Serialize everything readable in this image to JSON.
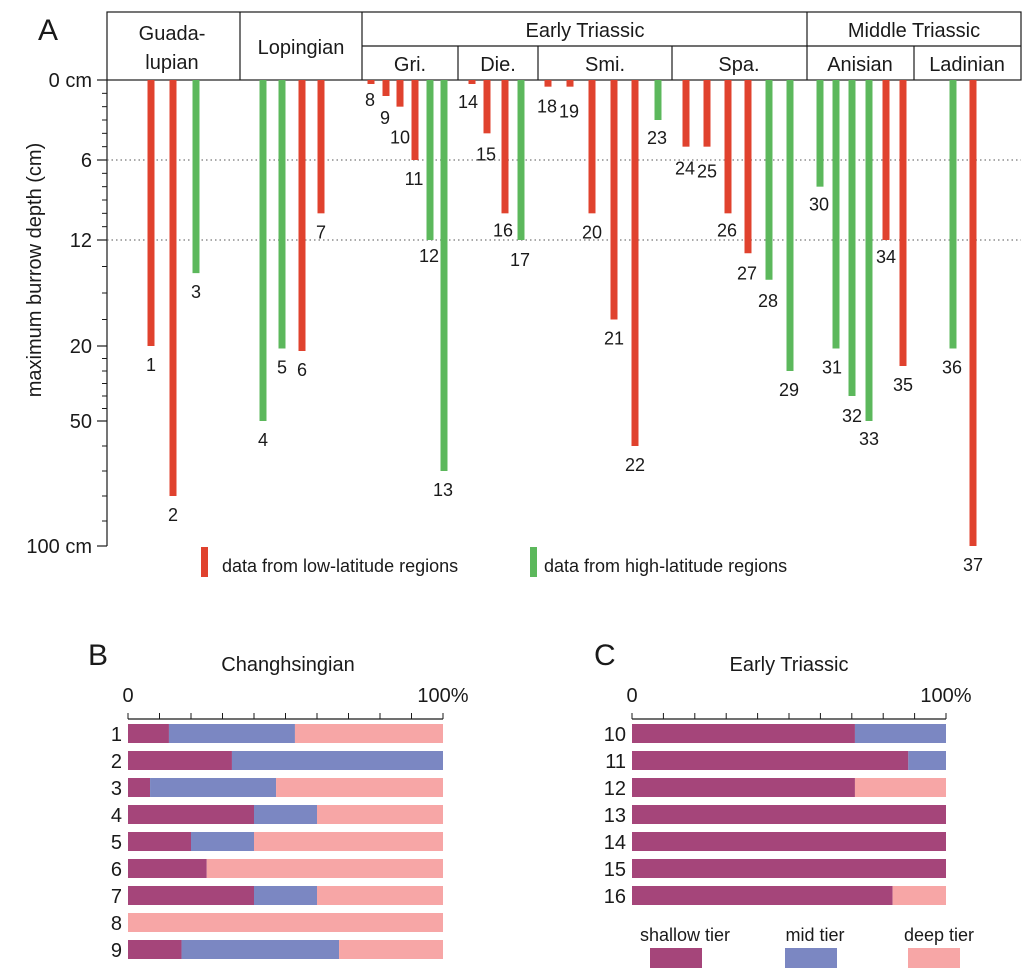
{
  "panels": {
    "a": "A",
    "b": "B",
    "c": "C"
  },
  "colors": {
    "low": "#e0422e",
    "high": "#5cb85c",
    "shallow": "#a5457a",
    "mid": "#7b87c2",
    "deep": "#f7a6a6",
    "dotted": "#555555"
  },
  "header": {
    "guadalupian": [
      "Guada-",
      "lupian"
    ],
    "lopingian": "Lopingian",
    "early_triassic": "Early Triassic",
    "middle_triassic": "Middle Triassic",
    "gri": "Gri.",
    "die": "Die.",
    "smi": "Smi.",
    "spa": "Spa.",
    "anisian": "Anisian",
    "ladinian": "Ladinian"
  },
  "legend": {
    "low": "data from low-latitude regions",
    "high": "data from high-latitude regions",
    "shallow": "shallow tier",
    "mid": "mid tier",
    "deep": "deep tier"
  },
  "chart_data": [
    {
      "type": "bar",
      "ylabel": "maximum burrow depth (cm)",
      "y_ticks": [
        {
          "value": 0,
          "label": "0 cm"
        },
        {
          "value": 6,
          "label": "6"
        },
        {
          "value": 12,
          "label": "12"
        },
        {
          "value": 20,
          "label": "20"
        },
        {
          "value": 50,
          "label": "50"
        },
        {
          "value": 100,
          "label": "100 cm"
        }
      ],
      "y_axis": "non-linear (0–12 linear, then compressed 20, 50, 100)",
      "reference_lines": [
        6,
        12
      ],
      "series_names": {
        "low": "data from low-latitude regions",
        "high": "data from high-latitude regions"
      },
      "bars": [
        {
          "id": "1",
          "region": "low",
          "depth": 20
        },
        {
          "id": "2",
          "region": "low",
          "depth": 80
        },
        {
          "id": "3",
          "region": "high",
          "depth": 14.5
        },
        {
          "id": "4",
          "region": "high",
          "depth": 50
        },
        {
          "id": "5",
          "region": "high",
          "depth": 21
        },
        {
          "id": "6",
          "region": "low",
          "depth": 22
        },
        {
          "id": "7",
          "region": "low",
          "depth": 10
        },
        {
          "id": "8",
          "region": "low",
          "depth": 0.3
        },
        {
          "id": "9",
          "region": "low",
          "depth": 1.2
        },
        {
          "id": "10",
          "region": "low",
          "depth": 2
        },
        {
          "id": "11",
          "region": "low",
          "depth": 6
        },
        {
          "id": "12",
          "region": "high",
          "depth": 12
        },
        {
          "id": "13",
          "region": "high",
          "depth": 70
        },
        {
          "id": "14",
          "region": "low",
          "depth": 0.3
        },
        {
          "id": "15",
          "region": "low",
          "depth": 4
        },
        {
          "id": "16",
          "region": "low",
          "depth": 10
        },
        {
          "id": "17",
          "region": "high",
          "depth": 12
        },
        {
          "id": "18",
          "region": "low",
          "depth": 0.5
        },
        {
          "id": "19",
          "region": "low",
          "depth": 0.5
        },
        {
          "id": "20",
          "region": "low",
          "depth": 10
        },
        {
          "id": "21",
          "region": "low",
          "depth": 18
        },
        {
          "id": "22",
          "region": "low",
          "depth": 60
        },
        {
          "id": "23",
          "region": "high",
          "depth": 3
        },
        {
          "id": "24",
          "region": "low",
          "depth": 5
        },
        {
          "id": "25",
          "region": "low",
          "depth": 5
        },
        {
          "id": "26",
          "region": "low",
          "depth": 10
        },
        {
          "id": "27",
          "region": "low",
          "depth": 13
        },
        {
          "id": "28",
          "region": "high",
          "depth": 15
        },
        {
          "id": "29",
          "region": "high",
          "depth": 30
        },
        {
          "id": "30",
          "region": "high",
          "depth": 8
        },
        {
          "id": "31",
          "region": "high",
          "depth": 21
        },
        {
          "id": "32",
          "region": "high",
          "depth": 40
        },
        {
          "id": "33",
          "region": "high",
          "depth": 50
        },
        {
          "id": "34",
          "region": "low",
          "depth": 12
        },
        {
          "id": "35",
          "region": "low",
          "depth": 28
        },
        {
          "id": "36",
          "region": "high",
          "depth": 21
        },
        {
          "id": "37",
          "region": "low",
          "depth": 100
        }
      ]
    },
    {
      "type": "bar",
      "orientation": "horizontal-stacked",
      "title": "Changhsingian",
      "x_ticks": [
        "0",
        "100%"
      ],
      "series": [
        {
          "name": "shallow tier",
          "values": [
            13,
            33,
            7,
            40,
            20,
            25,
            40,
            0,
            17
          ]
        },
        {
          "name": "mid tier",
          "values": [
            40,
            67,
            40,
            20,
            20,
            0,
            20,
            0,
            50
          ]
        },
        {
          "name": "deep tier",
          "values": [
            47,
            0,
            53,
            40,
            60,
            75,
            40,
            100,
            33
          ]
        }
      ],
      "categories": [
        "1",
        "2",
        "3",
        "4",
        "5",
        "6",
        "7",
        "8",
        "9"
      ]
    },
    {
      "type": "bar",
      "orientation": "horizontal-stacked",
      "title": "Early Triassic",
      "x_ticks": [
        "0",
        "100%"
      ],
      "series": [
        {
          "name": "shallow tier",
          "values": [
            71,
            88,
            71,
            100,
            100,
            100,
            83
          ]
        },
        {
          "name": "mid tier",
          "values": [
            29,
            12,
            0,
            0,
            0,
            0,
            0
          ]
        },
        {
          "name": "deep tier",
          "values": [
            0,
            0,
            29,
            0,
            0,
            0,
            17
          ]
        }
      ],
      "categories": [
        "10",
        "11",
        "12",
        "13",
        "14",
        "15",
        "16"
      ]
    }
  ]
}
